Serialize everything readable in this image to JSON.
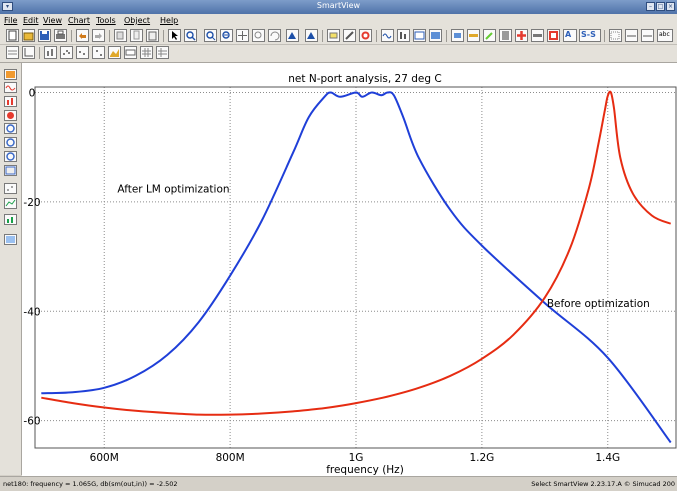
{
  "window": {
    "title": "SmartView",
    "sysmenu_glyph": "▾",
    "btn_minimize": "–",
    "btn_maximize": "□",
    "btn_close": "×"
  },
  "menu": [
    "File",
    "Edit",
    "View",
    "Chart",
    "Tools",
    "Object",
    "Help"
  ],
  "toolbar": {
    "row1_icons": [
      "new-doc-icon",
      "open-icon",
      "save-icon",
      "print-icon",
      "undo-icon",
      "redo-icon",
      "copy-icon",
      "cut-icon",
      "paste-icon",
      "pointer-icon",
      "zoom-box-icon",
      "zoom-in-icon",
      "zoom-out-icon",
      "pan-icon",
      "zoom-fit-icon",
      "rotate-icon",
      "export-icon",
      "import-icon",
      "link-icon",
      "marker-icon",
      "help-icon",
      "wave-icon",
      "stack-icon",
      "table-icon",
      "image-icon",
      "bar-chart-icon",
      "ruler-icon",
      "magic-icon",
      "calc-icon",
      "add-point-icon",
      "scale-icon",
      "grid-icon",
      "text-abc-icon",
      "ss-param-icon",
      "rect-select-icon",
      "line-arrow-icon",
      "ellipse-icon",
      "abc-label-icon"
    ],
    "row1_text": {
      "ab_label": "A",
      "ss_label": "S-S",
      "abc_label": "abc"
    },
    "row2_icons": [
      "grid-toggle-icon",
      "axis-icon",
      "bar-chart-small-icon",
      "scatter-icon",
      "scatter-dense-icon",
      "scatter-sparse-icon",
      "area-chart-icon",
      "abc-small-icon",
      "table-grid-icon",
      "table-grid2-icon"
    ]
  },
  "sidebar_icons": [
    "palette-icon",
    "waveform-icon",
    "bar-icon",
    "smith-chart-icon",
    "polar-icon",
    "polar-2-icon",
    "polar-3-icon",
    "grid-panel-icon",
    "scatter-panel-icon",
    "line-panel-icon",
    "histogram-panel-icon",
    "settings-panel-icon"
  ],
  "status": {
    "left": "net180:  frequency = 1.065G, db(sm(out,in)) = -2.502",
    "right": "Select SmartView 2.23.17.A © Simucad 200"
  },
  "colors": {
    "after_curve": "#1f3fd8",
    "before_curve": "#e62c12",
    "grid": "#8c8c8c"
  },
  "chart_data": {
    "type": "line",
    "title": "net N-port analysis, 27 deg C",
    "xlabel": "frequency (Hz)",
    "ylabel": "",
    "xlim": [
      490000000,
      1510000000
    ],
    "ylim": [
      -65,
      1
    ],
    "xticks": [
      600000000,
      800000000,
      1000000000,
      1200000000,
      1400000000
    ],
    "xtick_labels": [
      "600M",
      "800M",
      "1G",
      "1.2G",
      "1.4G"
    ],
    "yticks": [
      0,
      -20,
      -40,
      -60
    ],
    "ytick_labels": [
      "0",
      "-20",
      "-40",
      "-60"
    ],
    "grid": true,
    "annotations": [
      {
        "text": "After LM optimization",
        "x": 710000000,
        "y": -18.3
      },
      {
        "text": "Before optimization",
        "x": 1385000000,
        "y": -39.2
      }
    ],
    "series": [
      {
        "name": "After LM optimization",
        "color": "#1f3fd8",
        "x": [
          500000000,
          550000000,
          600000000,
          650000000,
          700000000,
          750000000,
          800000000,
          850000000,
          900000000,
          925000000,
          950000000,
          960000000,
          975000000,
          1000000000,
          1010000000,
          1025000000,
          1040000000,
          1050000000,
          1060000000,
          1075000000,
          1100000000,
          1150000000,
          1200000000,
          1300000000,
          1400000000,
          1500000000
        ],
        "values": [
          -55,
          -54.8,
          -54,
          -51.8,
          -48,
          -42,
          -33.5,
          -23.5,
          -11,
          -4.5,
          -0.8,
          0,
          -0.8,
          0,
          -0.8,
          0,
          -0.5,
          0,
          -0.5,
          -4.5,
          -12,
          -21.5,
          -28,
          -38.5,
          -48.5,
          -64
        ]
      },
      {
        "name": "Before optimization",
        "color": "#e62c12",
        "x": [
          500000000,
          550000000,
          600000000,
          650000000,
          700000000,
          750000000,
          800000000,
          850000000,
          900000000,
          950000000,
          1000000000,
          1050000000,
          1100000000,
          1150000000,
          1200000000,
          1250000000,
          1300000000,
          1340000000,
          1370000000,
          1385000000,
          1395000000,
          1400000000,
          1405000000,
          1410000000,
          1420000000,
          1440000000,
          1470000000,
          1500000000
        ],
        "values": [
          -55.8,
          -56.8,
          -57.6,
          -58.2,
          -58.6,
          -58.9,
          -58.9,
          -58.7,
          -58.3,
          -57.7,
          -56.8,
          -55.6,
          -54,
          -51.8,
          -48.7,
          -44.3,
          -37.5,
          -28.5,
          -17.5,
          -9.5,
          -3.5,
          -0.6,
          0,
          -3,
          -12,
          -18.5,
          -22.5,
          -24
        ]
      }
    ]
  }
}
